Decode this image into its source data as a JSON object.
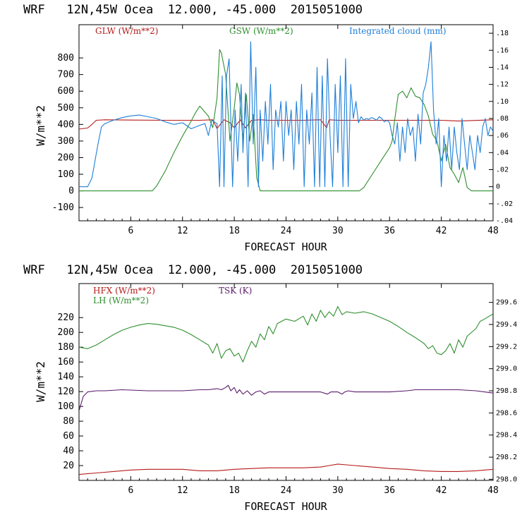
{
  "colors": {
    "red": "#b51a1a",
    "green": "#2f8f2f",
    "blue": "#1e7fd8",
    "purple": "#5a1a6a"
  },
  "chart_data": [
    {
      "type": "line",
      "title": "WRF   12N,45W Ocea  12.000, -45.000  2015051000",
      "xlabel": "FORECAST HOUR",
      "ylabel": "W/m**2",
      "xlim": [
        0,
        48
      ],
      "ylim": [
        -180,
        1000
      ],
      "x_ticks": [
        6,
        12,
        18,
        24,
        30,
        36,
        42,
        48
      ],
      "y_ticks": [
        -100,
        0,
        100,
        200,
        300,
        400,
        500,
        600,
        700,
        800
      ],
      "right_axis": {
        "ylim": [
          -0.04,
          0.19
        ],
        "ticks": [
          -0.04,
          -0.02,
          0.0,
          0.02,
          0.04,
          0.06,
          0.08,
          0.1,
          0.12,
          0.14,
          0.16,
          0.18
        ],
        "tick_labels": [
          "-.04",
          "-.02",
          "0",
          ".02",
          ".04",
          ".06",
          ".08",
          ".10",
          ".12",
          ".14",
          ".16",
          ".18"
        ]
      },
      "legend": [
        "GLW (W/m**2)",
        "GSW (W/m**2)",
        "Integrated cloud (mm)"
      ],
      "series": [
        {
          "name": "GLW (W/m**2)",
          "color": "red",
          "axis": "left",
          "x": [
            0,
            1,
            1.5,
            2,
            3,
            6,
            10,
            14,
            15.5,
            16,
            16.8,
            17.5,
            18,
            18.7,
            19.3,
            20,
            21,
            22,
            24,
            26,
            28,
            28.7,
            29,
            30,
            36,
            42,
            44,
            48
          ],
          "values": [
            372,
            378,
            400,
            425,
            428,
            426,
            425,
            425,
            428,
            375,
            428,
            410,
            380,
            428,
            378,
            425,
            428,
            425,
            425,
            425,
            428,
            380,
            428,
            425,
            425,
            425,
            420,
            428
          ]
        },
        {
          "name": "GSW (W/m**2)",
          "color": "green",
          "axis": "left",
          "x": [
            0,
            8.5,
            9,
            10,
            11,
            12,
            13,
            13.5,
            14,
            14.5,
            15,
            15.5,
            16,
            16.3,
            16.5,
            17,
            17.5,
            18,
            18.3,
            18.6,
            19,
            19.4,
            19.8,
            20.2,
            20.6,
            21,
            32.5,
            33,
            34,
            35,
            36,
            36.3,
            36.6,
            37,
            37.5,
            38,
            38.5,
            39,
            39.5,
            40,
            40.5,
            41,
            41.5,
            42,
            42.5,
            43,
            43.5,
            44,
            44.5,
            45,
            45.5,
            48
          ],
          "values": [
            0,
            0,
            30,
            120,
            230,
            330,
            420,
            470,
            510,
            480,
            450,
            380,
            560,
            850,
            830,
            700,
            300,
            500,
            650,
            580,
            300,
            580,
            300,
            460,
            80,
            0,
            0,
            20,
            100,
            180,
            260,
            300,
            430,
            580,
            600,
            560,
            620,
            570,
            560,
            520,
            450,
            340,
            300,
            180,
            280,
            140,
            100,
            50,
            140,
            20,
            0,
            0
          ]
        },
        {
          "name": "Integrated cloud (mm)",
          "color": "blue",
          "axis": "right",
          "x": [
            0,
            1.0,
            1.5,
            2.2,
            2.6,
            3.0,
            4.0,
            5.0,
            6.0,
            7.0,
            8.0,
            9.0,
            10.0,
            11.0,
            12.0,
            13.0,
            14.0,
            14.6,
            15.0,
            15.4,
            16.0,
            16.3,
            16.6,
            16.8,
            17.1,
            17.4,
            17.8,
            18.1,
            18.4,
            18.8,
            19.0,
            19.3,
            19.6,
            19.9,
            20.2,
            20.5,
            20.8,
            21.0,
            21.3,
            21.6,
            21.9,
            22.2,
            22.5,
            22.8,
            23.1,
            23.4,
            23.7,
            24.0,
            24.3,
            24.6,
            24.9,
            25.2,
            25.5,
            25.8,
            26.1,
            26.4,
            26.7,
            27.0,
            27.3,
            27.6,
            27.9,
            28.2,
            28.5,
            28.8,
            29.1,
            29.4,
            29.7,
            30.0,
            30.3,
            30.6,
            30.9,
            31.2,
            31.5,
            31.8,
            32.1,
            32.4,
            32.7,
            33.0,
            33.3,
            33.6,
            33.9,
            34.2,
            34.5,
            34.8,
            35.1,
            35.4,
            35.7,
            36.0,
            36.3,
            36.6,
            36.9,
            37.2,
            37.5,
            37.8,
            38.1,
            38.4,
            38.7,
            39.0,
            39.3,
            39.6,
            39.9,
            40.2,
            40.5,
            40.8,
            41.1,
            41.4,
            41.7,
            42.0,
            42.3,
            42.6,
            42.9,
            43.2,
            43.5,
            43.8,
            44.1,
            44.4,
            44.7,
            45.0,
            45.3,
            45.6,
            45.9,
            46.2,
            46.5,
            46.8,
            47.1,
            47.4,
            47.7,
            48.0
          ],
          "values": [
            0.0,
            0.0,
            0.01,
            0.05,
            0.07,
            0.074,
            0.078,
            0.081,
            0.083,
            0.084,
            0.082,
            0.08,
            0.076,
            0.073,
            0.075,
            0.068,
            0.072,
            0.074,
            0.06,
            0.078,
            0.074,
            0.0,
            0.13,
            0.0,
            0.13,
            0.15,
            0.0,
            0.09,
            0.03,
            0.12,
            0.04,
            0.11,
            0.0,
            0.17,
            0.05,
            0.14,
            0.0,
            0.09,
            0.03,
            0.1,
            0.05,
            0.12,
            0.02,
            0.09,
            0.07,
            0.1,
            0.03,
            0.1,
            0.06,
            0.09,
            0.02,
            0.1,
            0.05,
            0.12,
            0.0,
            0.09,
            0.05,
            0.11,
            0.0,
            0.14,
            0.0,
            0.13,
            0.0,
            0.15,
            0.06,
            0.0,
            0.12,
            0.04,
            0.13,
            0.0,
            0.15,
            0.0,
            0.12,
            0.08,
            0.1,
            0.075,
            0.082,
            0.078,
            0.08,
            0.079,
            0.081,
            0.08,
            0.078,
            0.082,
            0.08,
            0.076,
            0.078,
            0.075,
            0.06,
            0.05,
            0.075,
            0.03,
            0.07,
            0.04,
            0.08,
            0.06,
            0.07,
            0.03,
            0.085,
            0.05,
            0.11,
            0.12,
            0.14,
            0.17,
            0.09,
            0.05,
            0.08,
            0.0,
            0.06,
            0.03,
            0.07,
            0.02,
            0.07,
            0.04,
            0.02,
            0.08,
            0.05,
            0.02,
            0.06,
            0.04,
            0.02,
            0.06,
            0.04,
            0.07,
            0.08,
            0.06,
            0.07,
            0.065
          ]
        }
      ]
    },
    {
      "type": "line",
      "title": "WRF   12N,45W Ocea  12.000, -45.000  2015051000",
      "xlabel": "FORECAST HOUR",
      "ylabel": "W/m**2",
      "xlim": [
        0,
        48
      ],
      "ylim": [
        0,
        266
      ],
      "x_ticks": [
        6,
        12,
        18,
        24,
        30,
        36,
        42,
        48
      ],
      "y_ticks": [
        20,
        40,
        60,
        80,
        100,
        120,
        140,
        160,
        180,
        200,
        220
      ],
      "right_axis": {
        "ylim": [
          297.99,
          299.77
        ],
        "ticks": [
          298.0,
          298.2,
          298.4,
          298.6,
          298.8,
          299.0,
          299.2,
          299.4,
          299.6
        ],
        "tick_labels": [
          "298.0",
          "298.2",
          "298.4",
          "298.6",
          "298.8",
          "299.0",
          "299.2",
          "299.4",
          "299.6"
        ]
      },
      "legend": [
        "HFX (W/m**2)",
        "TSK (K)",
        "LH  (W/m**2)"
      ],
      "series": [
        {
          "name": "HFX (W/m**2)",
          "color": "red",
          "axis": "left",
          "x": [
            0,
            2,
            4,
            6,
            8,
            10,
            12,
            14,
            16,
            18,
            20,
            22,
            24,
            26,
            28,
            29,
            30,
            31,
            32,
            34,
            36,
            38,
            40,
            42,
            44,
            46,
            48
          ],
          "values": [
            8,
            10,
            12,
            14,
            15,
            15,
            15,
            13,
            13,
            15,
            16,
            17,
            17,
            17,
            18,
            20,
            22,
            21,
            20,
            18,
            16,
            15,
            13,
            12,
            12,
            13,
            15
          ]
        },
        {
          "name": "LH  (W/m**2)",
          "color": "green",
          "axis": "left",
          "x": [
            0,
            1,
            2,
            3,
            4,
            5,
            6,
            7,
            8,
            9,
            10,
            11,
            12,
            13,
            14,
            15,
            15.5,
            16,
            16.5,
            17,
            17.5,
            18,
            18.5,
            19,
            19.5,
            20,
            20.5,
            21,
            21.5,
            22,
            22.5,
            23,
            24,
            25,
            26,
            26.5,
            27,
            27.5,
            28,
            28.5,
            29,
            29.5,
            30,
            30.5,
            31,
            32,
            33,
            34,
            35,
            36,
            37,
            38,
            39,
            40,
            40.5,
            41,
            41.5,
            42,
            42.5,
            43,
            43.5,
            44,
            44.5,
            45,
            46,
            46.5,
            47,
            48
          ],
          "values": [
            180,
            178,
            183,
            190,
            197,
            203,
            207,
            210,
            212,
            211,
            209,
            207,
            203,
            197,
            190,
            183,
            172,
            185,
            165,
            175,
            178,
            168,
            172,
            160,
            175,
            188,
            180,
            198,
            190,
            208,
            198,
            212,
            218,
            215,
            222,
            210,
            225,
            215,
            230,
            220,
            228,
            222,
            235,
            224,
            228,
            226,
            228,
            225,
            220,
            215,
            208,
            200,
            193,
            185,
            178,
            182,
            172,
            170,
            175,
            185,
            172,
            190,
            180,
            195,
            205,
            215,
            218,
            225
          ]
        },
        {
          "name": "TSK (K)",
          "color": "purple",
          "axis": "right",
          "x": [
            0,
            0.5,
            1,
            2,
            3,
            5,
            8,
            10,
            12,
            14,
            15,
            16,
            16.5,
            17,
            17.3,
            17.6,
            18,
            18.3,
            18.6,
            19,
            19.5,
            20,
            20.5,
            21,
            21.5,
            22,
            24,
            26,
            28,
            28.8,
            29.2,
            30,
            30.5,
            30.8,
            31.2,
            32,
            34,
            36,
            38,
            39,
            40,
            42,
            44,
            46,
            47,
            48
          ],
          "values": [
            298.62,
            298.75,
            298.79,
            298.8,
            298.8,
            298.81,
            298.8,
            298.8,
            298.8,
            298.81,
            298.81,
            298.82,
            298.81,
            298.83,
            298.85,
            298.8,
            298.83,
            298.78,
            298.81,
            298.77,
            298.8,
            298.76,
            298.79,
            298.8,
            298.77,
            298.79,
            298.79,
            298.79,
            298.79,
            298.77,
            298.79,
            298.79,
            298.77,
            298.79,
            298.8,
            298.79,
            298.79,
            298.79,
            298.8,
            298.81,
            298.81,
            298.81,
            298.81,
            298.8,
            298.79,
            298.78
          ]
        }
      ]
    }
  ]
}
